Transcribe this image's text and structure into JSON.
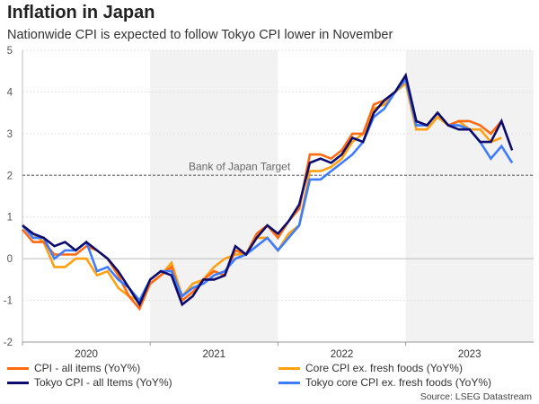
{
  "header": {
    "title": "Inflation in Japan",
    "subtitle": "Nationwide CPI is expected to follow Tokyo CPI lower in November"
  },
  "source": "Source: LSEG Datastream",
  "chart_data": {
    "type": "line",
    "title": "Inflation in Japan",
    "subtitle": "Nationwide CPI is expected to follow Tokyo CPI lower in November",
    "x_start": "2020-01",
    "x_frequency": "monthly",
    "x_tick_labels": [
      "2020",
      "2021",
      "2022",
      "2023"
    ],
    "shaded_years": [
      "2021",
      "2023"
    ],
    "shade_color": "#f2f2f2",
    "ylim": [
      -2,
      5
    ],
    "y_ticks": [
      -2,
      -1,
      0,
      1,
      2,
      3,
      4,
      5
    ],
    "grid": true,
    "reference_line": {
      "value": 2,
      "label": "Bank of Japan Target",
      "style": "dashed"
    },
    "legend_placement": "bottom",
    "series": [
      {
        "name": "CPI - all items (YoY%)",
        "color": "#ff6a10",
        "values": [
          0.7,
          0.4,
          0.4,
          0.1,
          0.1,
          0.1,
          0.3,
          0.2,
          0.0,
          -0.4,
          -0.9,
          -1.2,
          -0.6,
          -0.4,
          -0.2,
          -1.0,
          -0.8,
          -0.5,
          -0.3,
          -0.4,
          0.2,
          0.1,
          0.6,
          0.8,
          0.5,
          0.9,
          1.2,
          2.5,
          2.5,
          2.4,
          2.6,
          3.0,
          3.0,
          3.7,
          3.8,
          4.0,
          4.3,
          3.3,
          3.2,
          3.5,
          3.2,
          3.3,
          3.3,
          3.2,
          3.0,
          3.3
        ]
      },
      {
        "name": "Core CPI ex. fresh foods (YoY%)",
        "color": "#ffa010",
        "values": [
          0.8,
          0.6,
          0.4,
          -0.2,
          -0.2,
          0.0,
          0.0,
          -0.4,
          -0.3,
          -0.7,
          -0.9,
          -1.0,
          -0.6,
          -0.4,
          -0.1,
          -0.9,
          -0.6,
          -0.5,
          -0.2,
          0.0,
          0.1,
          0.1,
          0.5,
          0.5,
          0.2,
          0.6,
          0.8,
          2.1,
          2.1,
          2.2,
          2.4,
          2.8,
          3.0,
          3.6,
          3.7,
          4.0,
          4.2,
          3.1,
          3.1,
          3.4,
          3.2,
          3.3,
          3.1,
          3.1,
          2.8,
          2.9
        ]
      },
      {
        "name": "Tokyo CPI - all Items (YoY%)",
        "color": "#0c0c6e",
        "values": [
          0.8,
          0.6,
          0.5,
          0.3,
          0.4,
          0.2,
          0.4,
          0.2,
          0.0,
          -0.3,
          -0.7,
          -1.1,
          -0.5,
          -0.3,
          -0.4,
          -1.1,
          -0.9,
          -0.5,
          -0.5,
          -0.4,
          0.3,
          0.1,
          0.5,
          0.8,
          0.6,
          0.9,
          1.3,
          2.3,
          2.4,
          2.3,
          2.5,
          2.9,
          2.8,
          3.5,
          3.8,
          4.0,
          4.4,
          3.3,
          3.2,
          3.5,
          3.2,
          3.1,
          3.1,
          2.8,
          2.8,
          3.3,
          2.6
        ]
      },
      {
        "name": "Tokyo core CPI ex. fresh foods (YoY%)",
        "color": "#3d7cff",
        "values": [
          0.8,
          0.5,
          0.5,
          0.0,
          0.2,
          0.2,
          0.4,
          -0.3,
          -0.2,
          -0.5,
          -0.7,
          -1.0,
          -0.5,
          -0.3,
          -0.3,
          -0.9,
          -0.7,
          -0.6,
          -0.4,
          -0.3,
          0.0,
          0.1,
          0.3,
          0.5,
          0.2,
          0.5,
          0.8,
          1.9,
          1.9,
          2.1,
          2.3,
          2.5,
          2.8,
          3.4,
          3.6,
          4.0,
          4.3,
          3.2,
          3.2,
          3.5,
          3.2,
          3.2,
          3.1,
          2.8,
          2.4,
          2.7,
          2.3
        ]
      }
    ]
  }
}
